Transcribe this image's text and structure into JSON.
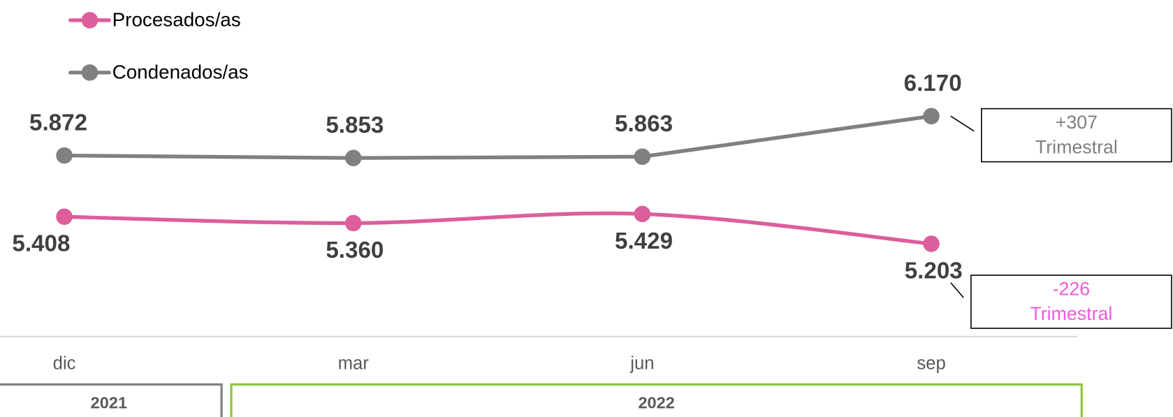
{
  "chart_data": {
    "type": "line",
    "categories": [
      "dic",
      "mar",
      "jun",
      "sep"
    ],
    "series": [
      {
        "name": "Procesados/as",
        "color": "#dc5e9b",
        "smooth": true,
        "values": [
          5408,
          5360,
          5429,
          5203
        ],
        "value_labels": [
          "5.408",
          "5.360",
          "5.429",
          "5.203"
        ],
        "label_position": "below"
      },
      {
        "name": "Condenados/as",
        "color": "#808080",
        "smooth": false,
        "values": [
          5872,
          5853,
          5863,
          6170
        ],
        "value_labels": [
          "5.872",
          "5.853",
          "5.863",
          "6.170"
        ],
        "label_position": "above"
      }
    ],
    "ylim": [
      4500,
      7050
    ],
    "annotations": [
      {
        "lines": [
          "+307",
          "Trimestral"
        ],
        "color": "#7f7f7f",
        "series": 1
      },
      {
        "lines": [
          "-226",
          "Trimestral"
        ],
        "color": "#f05ad8",
        "series": 0
      }
    ],
    "x_groups": [
      {
        "label": "2021",
        "color": "#7f7f7f",
        "from": 0,
        "to": 0
      },
      {
        "label": "2022",
        "color": "#8dc63f",
        "from": 1,
        "to": 3
      }
    ]
  }
}
